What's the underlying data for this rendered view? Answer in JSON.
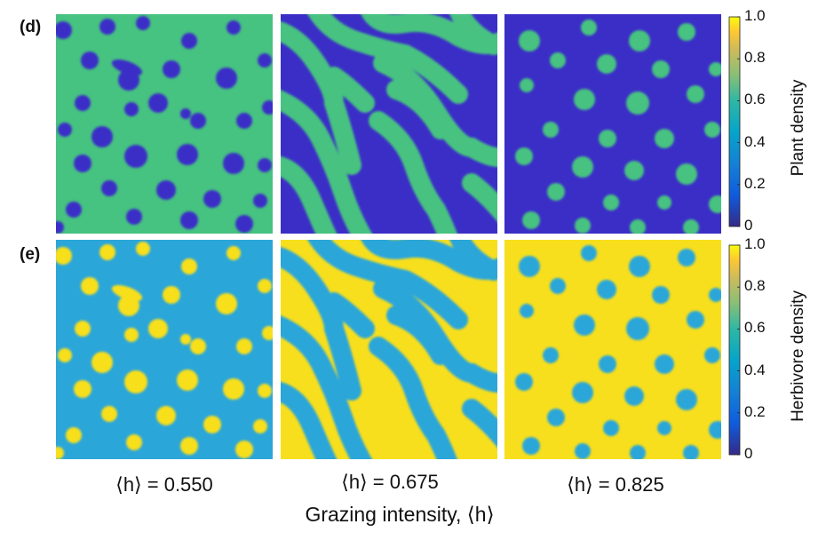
{
  "rows": [
    {
      "label": "(d)",
      "colorbar_title": "Plant density",
      "colormap": "parula",
      "colors": {
        "background": "#46c281",
        "spot": "#3b2ec7",
        "spot_center": "#3522b0"
      }
    },
    {
      "label": "(e)",
      "colorbar_title": "Herbivore density",
      "colormap": "parula",
      "colors": {
        "background": "#2ba6d9",
        "spot": "#f7df1e",
        "spot_center": "#fbeb13"
      }
    }
  ],
  "column_labels": [
    "⟨h⟩ = 0.550",
    "⟨h⟩ = 0.675",
    "⟨h⟩ = 0.825"
  ],
  "xlabel": "Grazing intensity, ⟨h⟩",
  "colorbar_ticks": [
    "1.0",
    "0.8",
    "0.6",
    "0.4",
    "0.2",
    "0"
  ],
  "chart_data": [
    {
      "type": "heatmap",
      "variable": "Plant density",
      "range": [
        0,
        1.0
      ],
      "panels": [
        {
          "h": 0.55,
          "pattern": "spots (gaps)",
          "background_value": 0.6,
          "feature_value": 0.05
        },
        {
          "h": 0.675,
          "pattern": "labyrinth",
          "background_value": 0.05,
          "feature_value": 0.6
        },
        {
          "h": 0.825,
          "pattern": "spots (vegetation)",
          "background_value": 0.05,
          "feature_value": 0.6
        }
      ]
    },
    {
      "type": "heatmap",
      "variable": "Herbivore density",
      "range": [
        0,
        1.0
      ],
      "panels": [
        {
          "h": 0.55,
          "pattern": "spots",
          "background_value": 0.45,
          "feature_value": 0.95
        },
        {
          "h": 0.675,
          "pattern": "labyrinth",
          "background_value": 0.95,
          "feature_value": 0.45
        },
        {
          "h": 0.825,
          "pattern": "spots",
          "background_value": 0.95,
          "feature_value": 0.45
        }
      ]
    }
  ]
}
